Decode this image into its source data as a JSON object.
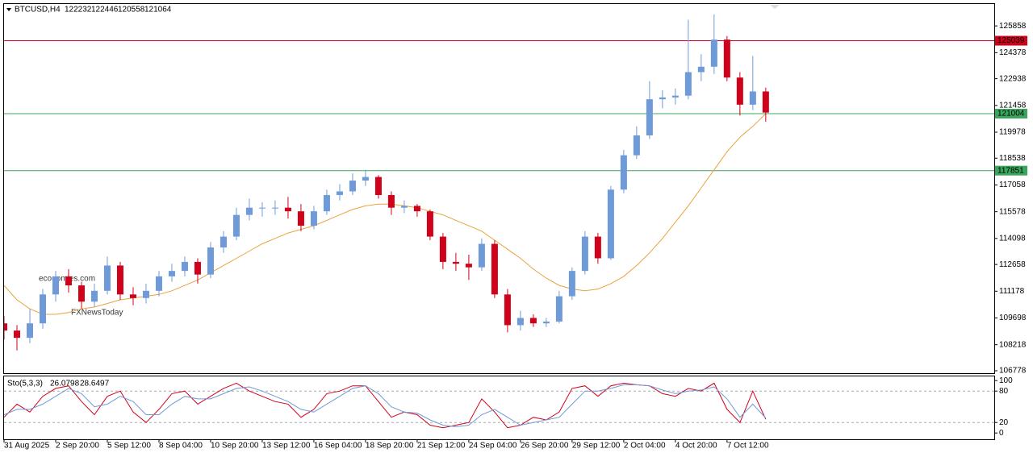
{
  "chart_data": [
    {
      "type": "candlestick",
      "symbol": "BTCUSD,H4",
      "watermarks": [
        "economies.com",
        "FXNewsToday"
      ],
      "bull_color": "#6f9ad9",
      "bear_color": "#d0021b",
      "xlim": [
        0,
        76.7
      ],
      "ylim": [
        106643,
        127069
      ],
      "yticks": [
        125858,
        124378,
        122938,
        121458,
        119978,
        118538,
        117058,
        115578,
        114098,
        112658,
        111178,
        109698,
        108218,
        106778
      ],
      "xticks": [
        {
          "value": 0,
          "label": "31 Aug 2025"
        },
        {
          "value": 4,
          "label": "2 Sep 20:00"
        },
        {
          "value": 8,
          "label": "5 Sep 12:00"
        },
        {
          "value": 12,
          "label": "8 Sep 04:00"
        },
        {
          "value": 16,
          "label": "10 Sep 20:00"
        },
        {
          "value": 20,
          "label": "13 Sep 12:00"
        },
        {
          "value": 24,
          "label": "16 Sep 04:00"
        },
        {
          "value": 28,
          "label": "18 Sep 20:00"
        },
        {
          "value": 32,
          "label": "21 Sep 12:00"
        },
        {
          "value": 36,
          "label": "24 Sep 04:00"
        },
        {
          "value": 40,
          "label": "26 Sep 20:00"
        },
        {
          "value": 44,
          "label": "29 Sep 12:00"
        },
        {
          "value": 48,
          "label": "2 Oct 04:00"
        },
        {
          "value": 52,
          "label": "4 Oct 20:00"
        },
        {
          "value": 56,
          "label": "7 Oct 12:00"
        }
      ],
      "levels": [
        {
          "value": 125039,
          "color": "#d0021b"
        },
        {
          "value": 121004,
          "color": "#3aa55c"
        },
        {
          "value": 117851,
          "color": "#3aa55c"
        }
      ],
      "ohlc": [
        [
          109400,
          109800,
          108500,
          109000
        ],
        [
          109000,
          109300,
          107900,
          108600
        ],
        [
          108600,
          110200,
          108300,
          109400
        ],
        [
          109400,
          111300,
          109100,
          111000
        ],
        [
          111000,
          112300,
          110600,
          112000
        ],
        [
          112000,
          112400,
          111100,
          111500
        ],
        [
          111500,
          111700,
          110200,
          110600
        ],
        [
          110600,
          111600,
          110300,
          111200
        ],
        [
          111200,
          113100,
          111000,
          112600
        ],
        [
          112600,
          112800,
          110700,
          111000
        ],
        [
          111000,
          111400,
          110400,
          110800
        ],
        [
          110800,
          111600,
          110500,
          111200
        ],
        [
          111200,
          112300,
          110900,
          112000
        ],
        [
          112000,
          112700,
          111700,
          112300
        ],
        [
          112300,
          113100,
          112000,
          112800
        ],
        [
          112800,
          113000,
          111600,
          112100
        ],
        [
          112100,
          113900,
          111900,
          113600
        ],
        [
          113600,
          114500,
          113300,
          114200
        ],
        [
          114200,
          115800,
          114000,
          115400
        ],
        [
          115400,
          116300,
          115100,
          115800
        ],
        [
          115800,
          116100,
          115300,
          115800
        ],
        [
          115800,
          116200,
          115400,
          115800
        ],
        [
          115800,
          116400,
          115200,
          115600
        ],
        [
          115600,
          116000,
          114500,
          114800
        ],
        [
          114800,
          115900,
          114600,
          115600
        ],
        [
          115600,
          116800,
          115400,
          116500
        ],
        [
          116500,
          117100,
          116200,
          116700
        ],
        [
          116700,
          117700,
          116500,
          117300
        ],
        [
          117300,
          117900,
          117000,
          117500
        ],
        [
          117500,
          117600,
          116300,
          116500
        ],
        [
          116500,
          116700,
          115400,
          115800
        ],
        [
          115800,
          116200,
          115500,
          115900
        ],
        [
          115900,
          116000,
          115300,
          115600
        ],
        [
          115600,
          115700,
          114000,
          114200
        ],
        [
          114200,
          114400,
          112400,
          112800
        ],
        [
          112800,
          113300,
          112300,
          112700
        ],
        [
          112700,
          113200,
          111800,
          112500
        ],
        [
          112500,
          114100,
          112300,
          113800
        ],
        [
          113800,
          114000,
          110800,
          111000
        ],
        [
          111000,
          111300,
          108900,
          109300
        ],
        [
          109300,
          110100,
          109000,
          109700
        ],
        [
          109700,
          109900,
          109200,
          109400
        ],
        [
          109400,
          109700,
          109200,
          109500
        ],
        [
          109500,
          111200,
          109400,
          110900
        ],
        [
          110900,
          112500,
          110700,
          112300
        ],
        [
          112300,
          114500,
          112100,
          114200
        ],
        [
          114200,
          114400,
          112700,
          113000
        ],
        [
          113000,
          117000,
          112900,
          116800
        ],
        [
          116800,
          119000,
          116600,
          118700
        ],
        [
          118700,
          120300,
          118500,
          119800
        ],
        [
          119800,
          122800,
          119600,
          121800
        ],
        [
          121800,
          122300,
          121300,
          121900
        ],
        [
          121900,
          122400,
          121500,
          122000
        ],
        [
          122000,
          126200,
          121800,
          123300
        ],
        [
          123300,
          124300,
          122800,
          123600
        ],
        [
          123600,
          126500,
          123200,
          125100
        ],
        [
          125100,
          125300,
          122800,
          123000
        ],
        [
          123000,
          123300,
          120900,
          121500
        ],
        [
          121500,
          124200,
          121200,
          122232
        ],
        [
          122232,
          122446,
          120558,
          121064
        ]
      ],
      "series": [
        {
          "color": "#e8a33d",
          "values": [
            111500,
            110700,
            110200,
            109900,
            109900,
            110000,
            110200,
            110300,
            110500,
            110700,
            110800,
            110900,
            111000,
            111200,
            111500,
            111800,
            112200,
            112600,
            113000,
            113400,
            113800,
            114100,
            114400,
            114600,
            114800,
            115100,
            115400,
            115700,
            115900,
            116000,
            116000,
            115900,
            115800,
            115600,
            115400,
            115100,
            114800,
            114500,
            114000,
            113500,
            113000,
            112400,
            111900,
            111500,
            111300,
            111200,
            111300,
            111600,
            112000,
            112600,
            113300,
            114100,
            115000,
            115900,
            116900,
            117900,
            118900,
            119700,
            120300,
            121000
          ]
        }
      ]
    },
    {
      "type": "line",
      "title": "Sto(5,3,3)",
      "xlim": [
        0,
        76.7
      ],
      "ylim": [
        -12,
        108
      ],
      "yticks": [
        100,
        80,
        20,
        0
      ],
      "dashed_levels": [
        80,
        20
      ],
      "series": [
        {
          "color": "#d0021b",
          "values": [
            30,
            55,
            40,
            70,
            85,
            90,
            60,
            35,
            70,
            80,
            40,
            20,
            45,
            75,
            80,
            55,
            70,
            85,
            95,
            80,
            70,
            60,
            55,
            30,
            45,
            75,
            80,
            90,
            90,
            60,
            30,
            40,
            35,
            15,
            10,
            15,
            20,
            65,
            40,
            10,
            15,
            30,
            25,
            40,
            85,
            90,
            70,
            90,
            95,
            92,
            90,
            75,
            70,
            85,
            80,
            95,
            45,
            20,
            80,
            26.0798
          ]
        },
        {
          "color": "#6f9ad9",
          "values": [
            35,
            45,
            45,
            55,
            70,
            85,
            75,
            50,
            55,
            70,
            60,
            35,
            35,
            55,
            70,
            65,
            65,
            75,
            85,
            88,
            80,
            70,
            60,
            45,
            40,
            55,
            70,
            85,
            90,
            75,
            50,
            40,
            38,
            25,
            15,
            12,
            15,
            35,
            45,
            30,
            15,
            20,
            25,
            30,
            55,
            80,
            80,
            85,
            92,
            92,
            90,
            82,
            75,
            80,
            82,
            88,
            65,
            30,
            55,
            28.6497
          ]
        }
      ]
    }
  ]
}
